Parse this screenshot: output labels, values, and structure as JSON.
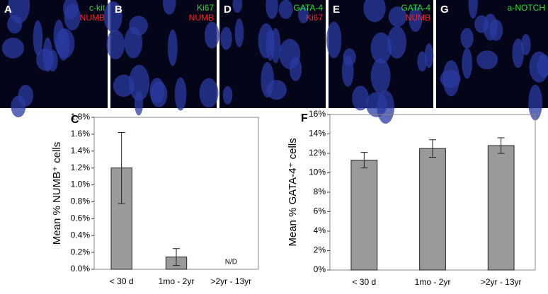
{
  "image_panels": [
    {
      "label": "A",
      "channels": [
        {
          "text": "c-kit",
          "color": "#33dd33"
        },
        {
          "text": "NUMB",
          "color": "#ff2020"
        }
      ]
    },
    {
      "label": "B",
      "channels": [
        {
          "text": "Ki67",
          "color": "#33dd33"
        },
        {
          "text": "NUMB",
          "color": "#ff2020"
        }
      ]
    },
    {
      "label": "D",
      "channels": [
        {
          "text": "GATA-4",
          "color": "#33dd33"
        },
        {
          "text": "Ki67",
          "color": "#ff2020"
        }
      ]
    },
    {
      "label": "E",
      "channels": [
        {
          "text": "GATA-4",
          "color": "#33dd33"
        },
        {
          "text": "NUMB",
          "color": "#ff2020"
        }
      ]
    },
    {
      "label": "G",
      "channels": [
        {
          "text": "a-NOTCH",
          "color": "#33dd33"
        }
      ]
    }
  ],
  "chart_data": [
    {
      "type": "bar",
      "panel": "C",
      "y_label": "Mean % NUMB⁺ cells",
      "categories": [
        "< 30 d",
        "1mo - 2yr",
        ">2yr - 13yr"
      ],
      "values": [
        1.2,
        0.145,
        null
      ],
      "errors": [
        0.42,
        0.1,
        null
      ],
      "value_labels": [
        null,
        null,
        "N/D"
      ],
      "color": "#9a9a9a",
      "ylim": [
        0,
        1.8
      ],
      "yticks": [
        {
          "value": 0,
          "label": "0.0%"
        },
        {
          "value": 0.2,
          "label": "0.2%"
        },
        {
          "value": 0.4,
          "label": "0.4%"
        },
        {
          "value": 0.6,
          "label": "0.6%"
        },
        {
          "value": 0.8,
          "label": "0.8%"
        },
        {
          "value": 1.0,
          "label": "1.0%"
        },
        {
          "value": 1.2,
          "label": "1.2%"
        },
        {
          "value": 1.4,
          "label": "1.4%"
        },
        {
          "value": 1.6,
          "label": "1.6%"
        },
        {
          "value": 1.8,
          "label": "1.8%"
        }
      ]
    },
    {
      "type": "bar",
      "panel": "F",
      "y_label": "Mean % GATA-4⁺ cells",
      "categories": [
        "< 30 d",
        "1mo - 2yr",
        ">2yr - 13yr"
      ],
      "values": [
        11.3,
        12.5,
        12.8
      ],
      "errors": [
        0.8,
        0.9,
        0.8
      ],
      "color": "#9a9a9a",
      "ylim": [
        0,
        16
      ],
      "yticks": [
        {
          "value": 0,
          "label": "0%"
        },
        {
          "value": 2,
          "label": "2%"
        },
        {
          "value": 4,
          "label": "4%"
        },
        {
          "value": 6,
          "label": "6%"
        },
        {
          "value": 8,
          "label": "8%"
        },
        {
          "value": 10,
          "label": "10%"
        },
        {
          "value": 12,
          "label": "12%"
        },
        {
          "value": 14,
          "label": "14%"
        },
        {
          "value": 16,
          "label": "16%"
        }
      ]
    }
  ]
}
